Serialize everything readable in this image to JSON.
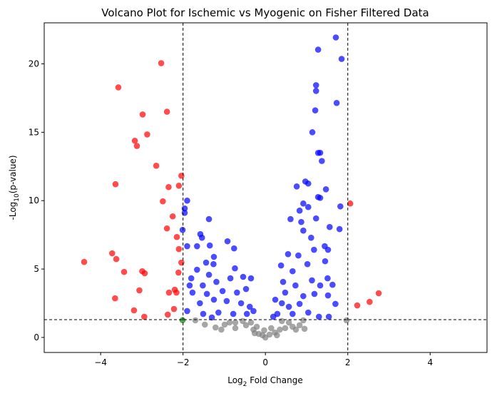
{
  "chart_data": {
    "type": "scatter",
    "title": "Volcano Plot for Ischemic vs Myogenic on Fisher Filtered Data",
    "xlabel_parts": [
      "Log",
      "2",
      " Fold Change"
    ],
    "ylabel_parts": [
      "-Log",
      "10",
      "(p-value)"
    ],
    "xlim": [
      -5.37,
      5.38
    ],
    "ylim": [
      -1.1,
      23
    ],
    "xticks": [
      {
        "value": -4,
        "label": "−4"
      },
      {
        "value": -2,
        "label": "−2"
      },
      0,
      2,
      4
    ],
    "yticks": [
      0,
      5,
      10,
      15,
      20
    ],
    "vlines": [
      -2,
      2
    ],
    "hline": 1.3,
    "series": [
      {
        "color": "#ff0000",
        "x": [
          -4.4,
          -3.57,
          -3.64,
          -3.72,
          -3.62,
          -3.43,
          -3.65,
          -3.17,
          -3.12,
          -2.98,
          -2.87,
          -2.99,
          -2.93,
          -3.06,
          -3.19,
          -2.94,
          -2.53,
          -2.65,
          -2.39,
          -2.35,
          -2.49,
          -2.39,
          -2.25,
          -2.1,
          -2.04,
          -2.15,
          -2.1,
          -2.04,
          -2.11,
          -2.34,
          -2.2,
          -2.16,
          -2.22,
          -2.37,
          2.06,
          2.23,
          2.53,
          2.75
        ],
        "values": [
          5.52,
          18.28,
          11.2,
          6.15,
          5.73,
          4.79,
          2.86,
          14.38,
          14.0,
          16.3,
          14.84,
          4.84,
          4.69,
          3.44,
          1.98,
          1.51,
          20.05,
          12.55,
          16.5,
          10.99,
          9.95,
          7.97,
          8.85,
          11.09,
          11.82,
          7.34,
          6.46,
          5.47,
          4.74,
          3.28,
          3.49,
          3.28,
          2.08,
          1.67,
          9.79,
          2.34,
          2.6,
          3.23
        ]
      },
      {
        "color": "#0000ff",
        "x": [
          1.71,
          1.28,
          1.85,
          1.23,
          1.23,
          1.73,
          1.21,
          1.14,
          1.28,
          1.33,
          1.37,
          0.97,
          1.04,
          0.76,
          1.47,
          1.28,
          1.33,
          1.82,
          0.92,
          1.04,
          0.83,
          1.56,
          1.8,
          0.61,
          0.87,
          1.23,
          0.92,
          1.11,
          1.44,
          1.52,
          0.55,
          0.8,
          1.18,
          0.38,
          0.66,
          1.02,
          1.45,
          0.43,
          0.73,
          1.13,
          1.51,
          1.19,
          1.52,
          0.24,
          0.4,
          0.57,
          0.83,
          1.04,
          1.54,
          1.3,
          0.29,
          0.19,
          0.66,
          0.48,
          0.92,
          1.33,
          1.63,
          1.7,
          -1.9,
          -1.96,
          -1.96,
          -2.01,
          -1.37,
          -1.9,
          -1.58,
          -1.54,
          -1.35,
          -1.66,
          -0.92,
          -1.25,
          -0.76,
          -1.44,
          -1.26,
          -1.66,
          -1.37,
          -0.74,
          -1.8,
          -1.84,
          -1.52,
          -1.19,
          -0.85,
          -0.54,
          -0.35,
          -1.77,
          -1.42,
          -1.04,
          -0.69,
          -0.47,
          -1.59,
          -1.25,
          -0.94,
          -0.59,
          -0.38,
          -1.9,
          -1.51,
          -1.14,
          -0.78,
          -0.45,
          -1.3,
          -0.29
        ],
        "values": [
          21.93,
          21.04,
          20.36,
          18.44,
          18.02,
          17.14,
          16.6,
          15.0,
          13.49,
          13.5,
          12.9,
          11.4,
          11.25,
          11.04,
          10.83,
          10.26,
          10.2,
          9.58,
          9.79,
          9.53,
          9.27,
          8.07,
          7.92,
          8.65,
          8.44,
          8.7,
          7.81,
          7.29,
          6.67,
          6.41,
          6.09,
          5.99,
          6.41,
          5.26,
          4.84,
          5.36,
          5.57,
          4.06,
          3.8,
          4.17,
          4.32,
          3.18,
          3.07,
          2.76,
          2.5,
          2.24,
          2.45,
          1.82,
          1.51,
          1.51,
          1.72,
          1.51,
          1.72,
          3.28,
          3.02,
          3.8,
          3.85,
          2.45,
          10.0,
          9.43,
          9.11,
          7.86,
          8.65,
          6.67,
          7.55,
          7.29,
          6.72,
          6.67,
          7.03,
          5.89,
          6.51,
          5.47,
          5.36,
          4.95,
          4.58,
          5.05,
          4.32,
          3.8,
          3.8,
          4.06,
          4.32,
          4.43,
          4.32,
          3.28,
          3.18,
          3.39,
          3.28,
          3.54,
          2.5,
          2.76,
          2.66,
          2.5,
          2.24,
          1.93,
          1.72,
          1.82,
          1.72,
          1.72,
          1.46,
          1.93
        ]
      },
      {
        "color": "#808080",
        "x": [
          -1.47,
          -1.21,
          -0.99,
          -0.73,
          -0.47,
          -0.29,
          -0.16,
          0,
          -0.07,
          0.1,
          0.23,
          0.35,
          0.48,
          0.66,
          0.83,
          0.95,
          0.74,
          -0.35,
          -0.55,
          -0.87,
          -1.07,
          0.4,
          0.57,
          -0.21,
          0.14,
          -0.03,
          0.28,
          -0.26,
          -0.73,
          0.92,
          1.97,
          -1.7
        ],
        "values": [
          0.94,
          0.73,
          0.94,
          0.68,
          0.89,
          0.57,
          0.26,
          0,
          0.16,
          0.21,
          0.36,
          0.57,
          0.68,
          0.78,
          0.89,
          0.63,
          0.57,
          1.09,
          1.2,
          1.09,
          0.57,
          1.2,
          1.09,
          0.78,
          0.68,
          0.52,
          0.16,
          0.31,
          1.09,
          1.25,
          1.25,
          1.25
        ]
      },
      {
        "color": "#008000",
        "x": [
          -2.01
        ],
        "values": [
          1.26
        ]
      }
    ]
  }
}
